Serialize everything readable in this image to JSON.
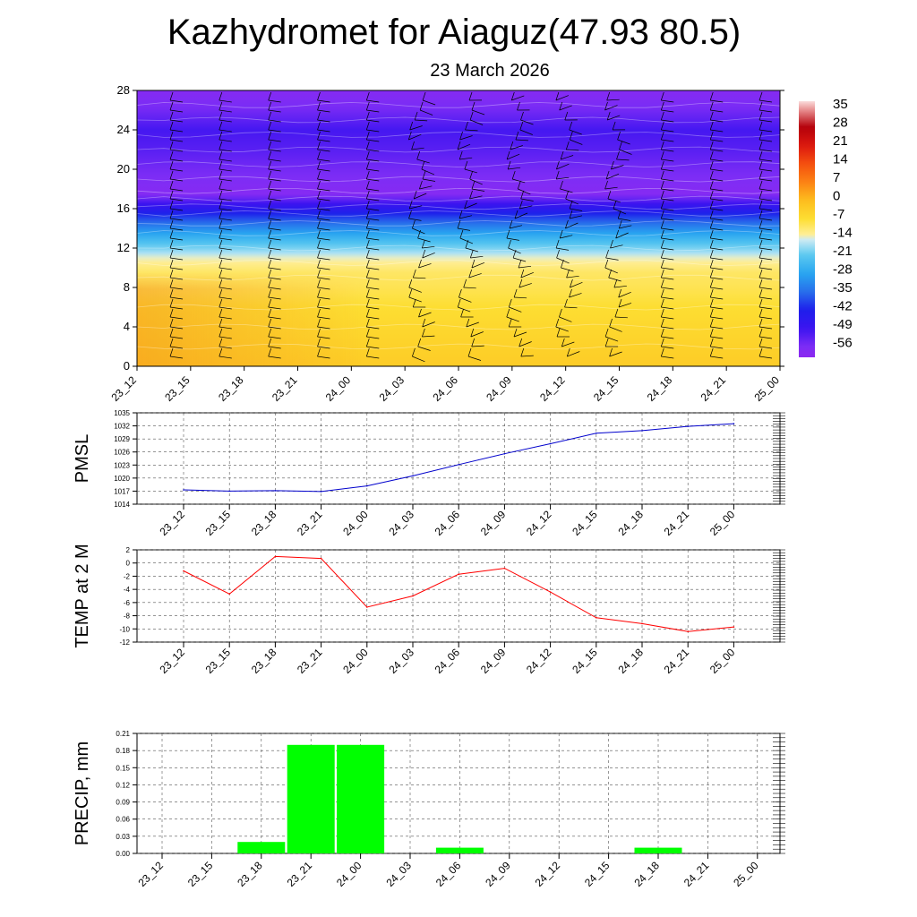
{
  "header": {
    "title": "Kazhydromet for Aiaguz(47.93 80.5)",
    "date": "23 March 2026"
  },
  "time_labels": [
    "23_12",
    "23_15",
    "23_18",
    "23_21",
    "24_00",
    "24_03",
    "24_06",
    "24_09",
    "24_12",
    "24_15",
    "24_18",
    "24_21",
    "25_00"
  ],
  "colors": {
    "pmsl_line": "#0000cc",
    "temp_line": "#ff0000",
    "precip_bar": "#00ff00",
    "grid": "#555555"
  },
  "chart_data": [
    {
      "type": "heatmap",
      "name": "cross-section",
      "title": "",
      "ylabel": "",
      "y_ticks": [
        "0",
        "4",
        "8",
        "12",
        "16",
        "20",
        "24",
        "28"
      ],
      "ylim": [
        0,
        28
      ],
      "colorbar_labels": [
        "35",
        "28",
        "21",
        "14",
        "7",
        "0",
        "-7",
        "-14",
        "-21",
        "-28",
        "-35",
        "-42",
        "-49",
        "-56"
      ],
      "colorbar_range": [
        -60,
        38
      ],
      "profile_heights": [
        0,
        3,
        6,
        8,
        9.5,
        11,
        13,
        15,
        16.5,
        17.5,
        18.5,
        20,
        22,
        24,
        26,
        28
      ],
      "profile_temps": [
        -3,
        -5,
        -7,
        -9,
        -10,
        -14,
        -25,
        -38,
        -49,
        -58,
        -57,
        -55,
        -52,
        -50,
        -55,
        -58
      ]
    },
    {
      "type": "line",
      "name": "pmsl",
      "ylabel": "PMSL",
      "y_ticks": [
        "1014",
        "1017",
        "1020",
        "1023",
        "1026",
        "1029",
        "1032",
        "1035"
      ],
      "ylim": [
        1014,
        1035
      ],
      "x": [
        "23_12",
        "23_15",
        "23_18",
        "23_21",
        "24_00",
        "24_03",
        "24_06",
        "24_09",
        "24_12",
        "24_15",
        "24_18",
        "24_21",
        "25_00"
      ],
      "values": [
        1017.3,
        1017.0,
        1017.1,
        1016.9,
        1018.2,
        1020.5,
        1023.1,
        1025.6,
        1027.9,
        1030.3,
        1030.9,
        1031.9,
        1032.5
      ]
    },
    {
      "type": "line",
      "name": "temp2m",
      "ylabel": "TEMP at 2 M",
      "y_ticks": [
        "2",
        "0",
        "-2",
        "-4",
        "-6",
        "-8",
        "-10",
        "-12"
      ],
      "ylim": [
        -12,
        2
      ],
      "x": [
        "23_12",
        "23_15",
        "23_18",
        "23_21",
        "24_00",
        "24_03",
        "24_06",
        "24_09",
        "24_12",
        "24_15",
        "24_18",
        "24_21",
        "25_00"
      ],
      "values": [
        -1.2,
        -4.7,
        1.0,
        0.7,
        -6.7,
        -5.0,
        -1.7,
        -0.8,
        -4.4,
        -8.3,
        -9.2,
        -10.4,
        -9.7
      ]
    },
    {
      "type": "bar",
      "name": "precip",
      "ylabel": "PRECIP, mm",
      "y_ticks": [
        "0.00",
        "0.03",
        "0.06",
        "0.09",
        "0.12",
        "0.15",
        "0.18",
        "0.21"
      ],
      "ylim": [
        0,
        0.21
      ],
      "categories": [
        "23_12",
        "23_15",
        "23_18",
        "23_21",
        "24_00",
        "24_03",
        "24_06",
        "24_09",
        "24_12",
        "24_15",
        "24_18",
        "24_21",
        "25_00"
      ],
      "values": [
        0,
        0,
        0.02,
        0.19,
        0.19,
        0,
        0.01,
        0,
        0,
        0,
        0.01,
        0,
        0
      ]
    }
  ]
}
